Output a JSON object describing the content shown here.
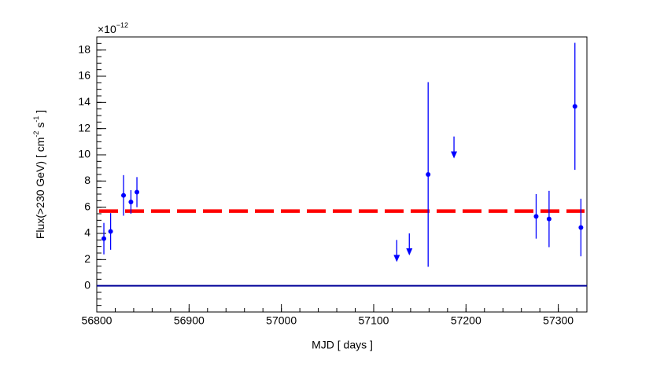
{
  "chart_data": {
    "type": "scatter",
    "xlabel": "MJD [ days ]",
    "ylabel_parts": [
      "Flux(>230 GeV) [ cm",
      "-2",
      " s",
      "-1",
      " ]"
    ],
    "y_multiplier": "×10",
    "y_multiplier_exponent": "−12",
    "xlim": [
      56800,
      57331
    ],
    "ylim": [
      -2,
      19
    ],
    "xticks": [
      56800,
      56900,
      57000,
      57100,
      57200,
      57300
    ],
    "yticks": [
      0,
      2,
      4,
      6,
      8,
      10,
      12,
      14,
      16,
      18
    ],
    "series": [
      {
        "color": "#0000ff",
        "x": [
          56807.7,
          56815,
          56829,
          56837,
          56843.5,
          57159,
          57276,
          57290,
          57318,
          57324.5
        ],
        "values": [
          3.6,
          4.15,
          6.9,
          6.4,
          7.15,
          8.5,
          5.3,
          5.1,
          13.7,
          4.45
        ],
        "errors": [
          1.2,
          1.4,
          1.55,
          0.9,
          1.15,
          7.05,
          1.7,
          2.15,
          4.85,
          2.2
        ]
      }
    ],
    "upper_limits": {
      "color": "#0000ff",
      "x": [
        57125,
        57138.6,
        57187
      ],
      "values": [
        3.5,
        4.0,
        11.4
      ]
    },
    "reference_line": {
      "value": 5.7,
      "color": "#ff0000"
    },
    "baseline": {
      "value": 0,
      "color": "#000099"
    }
  }
}
